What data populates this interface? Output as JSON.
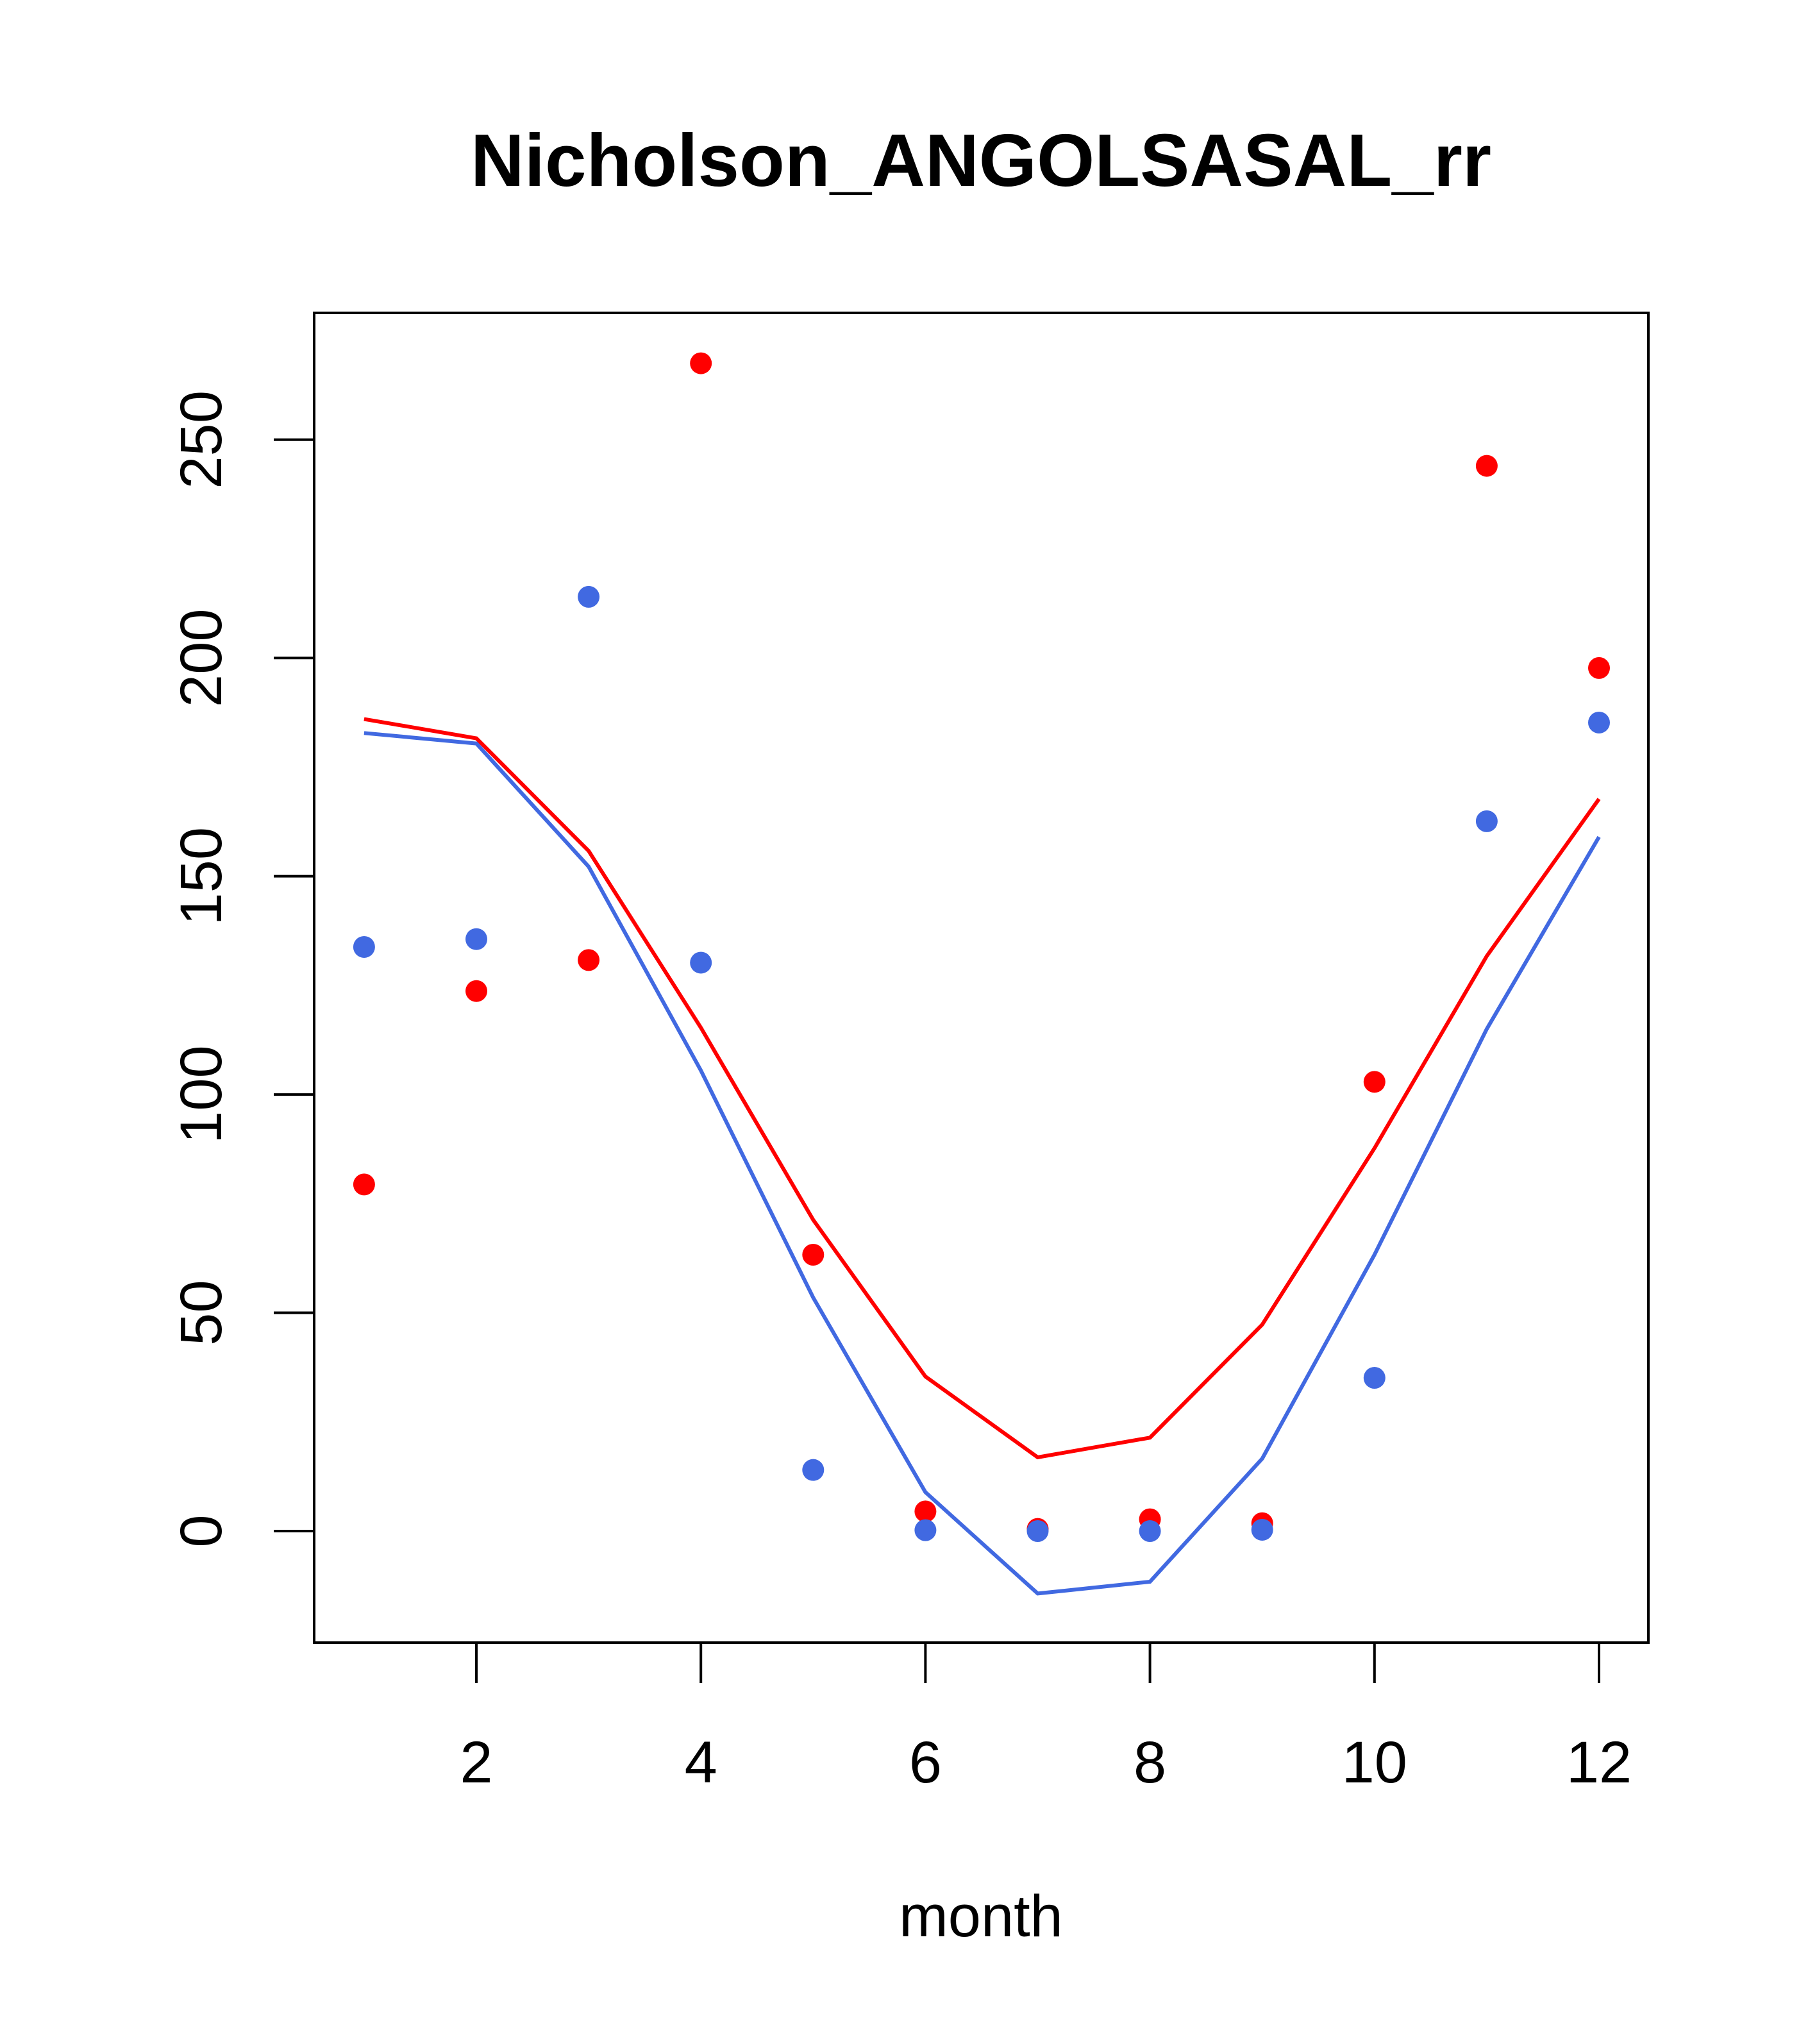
{
  "chart_data": {
    "type": "line",
    "title": "Nicholson_ANGOLSASAL_rr",
    "xlabel": "month",
    "ylabel": "",
    "xlim": [
      0.78,
      12.44
    ],
    "ylim": [
      -25,
      278
    ],
    "xticks": [
      2,
      4,
      6,
      8,
      10,
      12
    ],
    "yticks": [
      0,
      50,
      100,
      150,
      200,
      250
    ],
    "grid": false,
    "x": [
      1,
      2,
      3,
      4,
      5,
      6,
      7,
      8,
      9,
      10,
      11,
      12
    ],
    "series": [
      {
        "name": "red points",
        "kind": "points",
        "color": "#ff0000",
        "values": [
          79.4,
          123.7,
          130.8,
          267.5,
          63.3,
          4.5,
          0.5,
          2.7,
          1.8,
          102.9,
          244.0,
          197.7
        ]
      },
      {
        "name": "red line",
        "kind": "line",
        "color": "#ff0000",
        "values": [
          186.0,
          181.6,
          155.8,
          115.3,
          71.3,
          35.4,
          16.9,
          21.4,
          47.3,
          87.7,
          131.7,
          167.7
        ]
      },
      {
        "name": "blue points",
        "kind": "points",
        "color": "#4169e1",
        "values": [
          133.8,
          135.6,
          214.0,
          130.2,
          14.0,
          0.2,
          0.0,
          0.0,
          0.3,
          35.1,
          162.6,
          185.2
        ]
      },
      {
        "name": "blue line",
        "kind": "line",
        "color": "#4169e1",
        "values": [
          182.8,
          180.4,
          152.2,
          105.5,
          53.5,
          8.9,
          -14.3,
          -11.6,
          16.6,
          63.3,
          115.0,
          159.0
        ]
      }
    ]
  }
}
